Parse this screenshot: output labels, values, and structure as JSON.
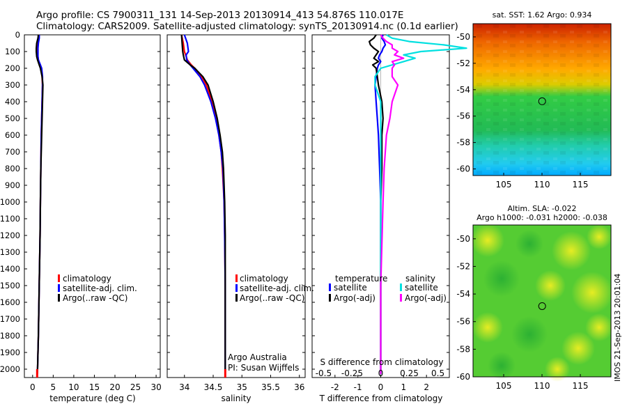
{
  "header": {
    "line1": "Argo profile: CS 7900311_131 14-Sep-2013 20130914_413 54.876S 110.017E",
    "line2": "Climatology: CARS2009. Satellite-adjusted climatology: synTS_20130914.nc (0.1d earlier)"
  },
  "colors": {
    "climatology": "#ff0000",
    "satellite": "#0000ff",
    "argo": "#000000",
    "salinity_satellite": "#00e0e0",
    "salinity_argo": "#ff00ff"
  },
  "depth_ticks": [
    0,
    100,
    200,
    300,
    400,
    500,
    600,
    700,
    800,
    900,
    1000,
    1100,
    1200,
    1300,
    1400,
    1500,
    1600,
    1700,
    1800,
    1900,
    2000
  ],
  "chart_data": [
    {
      "type": "line",
      "name": "temperature",
      "xlabel": "temperature (deg C)",
      "xlim": [
        -2,
        31
      ],
      "ylim": [
        2050,
        0
      ],
      "xticks": [
        0,
        5,
        10,
        15,
        20,
        25,
        30
      ],
      "legend": [
        "climatology",
        "satellite-adj. clim.",
        "Argo(..raw -QC)"
      ],
      "depth": [
        0,
        20,
        50,
        80,
        100,
        130,
        150,
        180,
        200,
        250,
        300,
        400,
        500,
        600,
        800,
        1000,
        1200,
        1500,
        1800,
        2000,
        2040
      ],
      "series": [
        {
          "name": "climatology",
          "color": "#ff0000",
          "values": [
            1.6,
            1.5,
            1.3,
            1.2,
            1.2,
            1.3,
            1.4,
            1.8,
            2.1,
            2.3,
            2.4,
            2.3,
            2.2,
            2.1,
            2.0,
            1.9,
            1.8,
            1.6,
            1.4,
            1.2,
            1.1
          ]
        },
        {
          "name": "satellite-adj. clim.",
          "color": "#0000ff",
          "values": [
            1.6,
            1.6,
            1.4,
            1.3,
            1.3,
            1.3,
            1.4,
            1.9,
            2.2,
            2.4,
            2.4,
            2.3,
            2.2,
            2.1,
            2.0,
            1.9,
            1.8,
            1.6,
            1.4,
            1.2,
            1.1
          ]
        },
        {
          "name": "Argo(..raw -QC)",
          "color": "#000000",
          "values": [
            1.4,
            1.3,
            1.0,
            0.9,
            0.9,
            1.0,
            1.2,
            1.6,
            1.9,
            2.3,
            2.5,
            2.4,
            2.3,
            2.2,
            2.0,
            1.9,
            1.8,
            1.6,
            1.4,
            1.2,
            1.1
          ]
        }
      ]
    },
    {
      "type": "line",
      "name": "salinity",
      "xlabel": "salinity",
      "xlim": [
        33.7,
        36.1
      ],
      "ylim": [
        2050,
        0
      ],
      "xticks": [
        34,
        34.5,
        35,
        35.5,
        36
      ],
      "xticklabels": [
        "34",
        "34.5",
        "35",
        "35.5",
        "36"
      ],
      "legend": [
        "climatology",
        "satellite-adj. clim.",
        "Argo(..raw -QC)"
      ],
      "annotation": [
        "Argo Australia",
        "PI: Susan Wijffels"
      ],
      "depth": [
        0,
        50,
        100,
        120,
        150,
        180,
        200,
        250,
        300,
        400,
        500,
        600,
        700,
        800,
        1000,
        1200,
        1500,
        1800,
        2000,
        2040
      ],
      "series": [
        {
          "name": "climatology",
          "color": "#ff0000",
          "values": [
            33.95,
            33.98,
            34.0,
            34.02,
            34.05,
            34.12,
            34.18,
            34.3,
            34.38,
            34.48,
            34.55,
            34.6,
            34.64,
            34.66,
            34.69,
            34.7,
            34.71,
            34.71,
            34.71,
            34.71
          ]
        },
        {
          "name": "satellite-adj. clim.",
          "color": "#0000ff",
          "values": [
            34.0,
            34.05,
            34.07,
            34.03,
            34.04,
            34.1,
            34.15,
            34.27,
            34.35,
            34.46,
            34.54,
            34.6,
            34.64,
            34.67,
            34.69,
            34.7,
            34.71,
            34.71,
            34.71,
            34.71
          ]
        },
        {
          "name": "Argo(..raw -QC)",
          "color": "#000000",
          "values": [
            33.95,
            33.96,
            33.97,
            33.98,
            34.0,
            34.1,
            34.18,
            34.32,
            34.41,
            34.5,
            34.57,
            34.62,
            34.66,
            34.68,
            34.7,
            34.71,
            34.71,
            34.71,
            34.71,
            34.71
          ]
        }
      ]
    },
    {
      "type": "line",
      "name": "difference",
      "xlabel": "T difference from climatology",
      "xlabel2": "S difference from climatology",
      "xlim": [
        -3,
        3
      ],
      "ylim": [
        2050,
        0
      ],
      "xticks": [
        -2,
        -1,
        0,
        1,
        2
      ],
      "xticks_s": [
        -0.5,
        -0.25,
        0,
        0.25,
        0.5
      ],
      "xticklabels_s": [
        "-0.5",
        "-0.25",
        "0",
        "0.25",
        "0.5"
      ],
      "legend_titles": [
        "temperature",
        "salinity"
      ],
      "legend": [
        "satellite",
        "Argo(-adj)",
        "satellite",
        "Argo(-adj)"
      ],
      "depth": [
        0,
        20,
        40,
        60,
        80,
        100,
        120,
        140,
        160,
        180,
        200,
        250,
        300,
        400,
        500,
        600,
        800,
        1000,
        1500,
        2000,
        2030
      ],
      "series": [
        {
          "name": "temperature satellite",
          "color": "#0000ff",
          "values": [
            0.1,
            0.05,
            0.15,
            0.2,
            0.1,
            0.05,
            -0.05,
            -0.1,
            0.0,
            -0.1,
            -0.15,
            -0.2,
            -0.25,
            -0.2,
            -0.15,
            -0.1,
            -0.05,
            0,
            0,
            0,
            0
          ]
        },
        {
          "name": "temperature Argo(-adj)",
          "color": "#000000",
          "values": [
            -0.2,
            -0.3,
            -0.5,
            -0.45,
            -0.3,
            -0.1,
            -0.2,
            -0.3,
            -0.1,
            -0.35,
            -0.2,
            -0.15,
            -0.1,
            0.05,
            0.1,
            0.05,
            0.05,
            0,
            0,
            0,
            0
          ]
        },
        {
          "name": "salinity satellite",
          "color": "#00e0e0",
          "values": [
            0.05,
            0.1,
            0.25,
            0.55,
            0.75,
            0.35,
            0.2,
            0.3,
            0.2,
            0.1,
            0.0,
            -0.05,
            -0.05,
            0,
            0,
            0,
            0,
            0,
            0,
            0,
            0
          ]
        },
        {
          "name": "salinity Argo(-adj)",
          "color": "#ff00ff",
          "values": [
            0.0,
            0.02,
            0.05,
            0.1,
            0.1,
            0.15,
            0.12,
            0.2,
            0.1,
            0.12,
            0.1,
            0.1,
            0.15,
            0.1,
            0.08,
            0.05,
            0.03,
            0.02,
            0,
            0,
            0
          ]
        }
      ]
    },
    {
      "type": "heatmap",
      "name": "sst",
      "title": "sat. SST: 1.62 Argo: 0.934",
      "xlim": [
        101,
        119
      ],
      "ylim": [
        -60.5,
        -49
      ],
      "xticks": [
        105,
        110,
        115
      ],
      "yticks": [
        -50,
        -52,
        -54,
        -56,
        -58,
        -60
      ],
      "marker": {
        "lon": 110.017,
        "lat": -54.876
      }
    },
    {
      "type": "heatmap",
      "name": "sla",
      "title": "Altim. SLA: -0.022",
      "subtitle": "Argo h1000: -0.031 h2000: -0.038",
      "xlim": [
        101,
        119
      ],
      "ylim": [
        -60,
        -49
      ],
      "xticks": [
        105,
        110,
        115
      ],
      "yticks": [
        -50,
        -52,
        -54,
        -56,
        -58,
        -60
      ],
      "marker": {
        "lon": 110.017,
        "lat": -54.876
      }
    }
  ],
  "stamp": "IMOS 21-Sep-2013 20:01:04"
}
